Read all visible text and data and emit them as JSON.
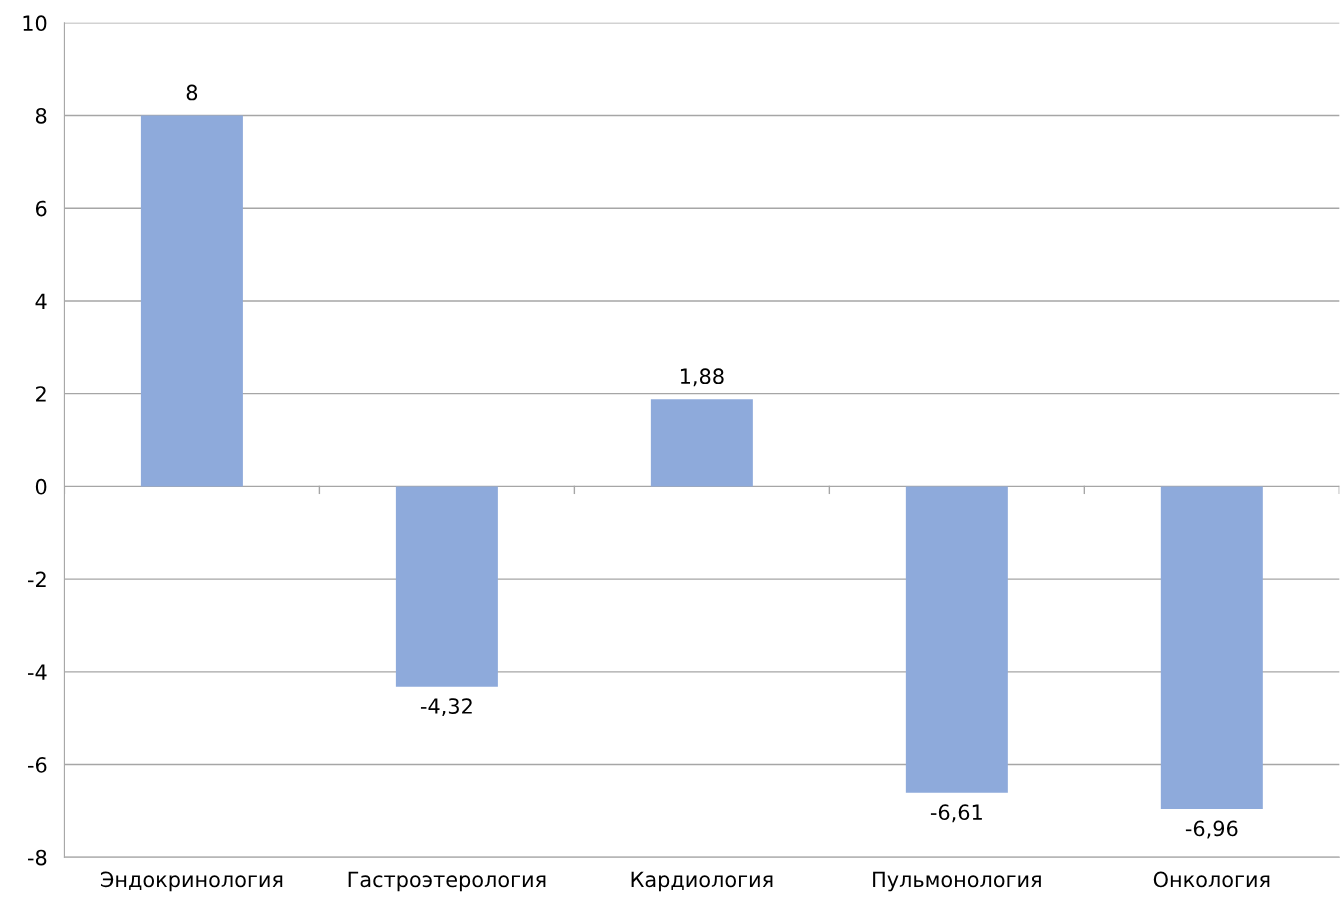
{
  "chart_data": {
    "type": "bar",
    "categories": [
      "Эндокринология",
      "Гастроэтерология",
      "Кардиология",
      "Пульмонология",
      "Онкология"
    ],
    "values": [
      8,
      -4.32,
      1.88,
      -6.61,
      -6.96
    ],
    "value_labels": [
      "8",
      "-4,32",
      "1,88",
      "-6,61",
      "-6,96"
    ],
    "color": "#8eaadb",
    "ylim": [
      -8,
      10
    ],
    "yticks": [
      -8,
      -6,
      -4,
      -2,
      0,
      2,
      4,
      6,
      8,
      10
    ],
    "grid": "y"
  }
}
